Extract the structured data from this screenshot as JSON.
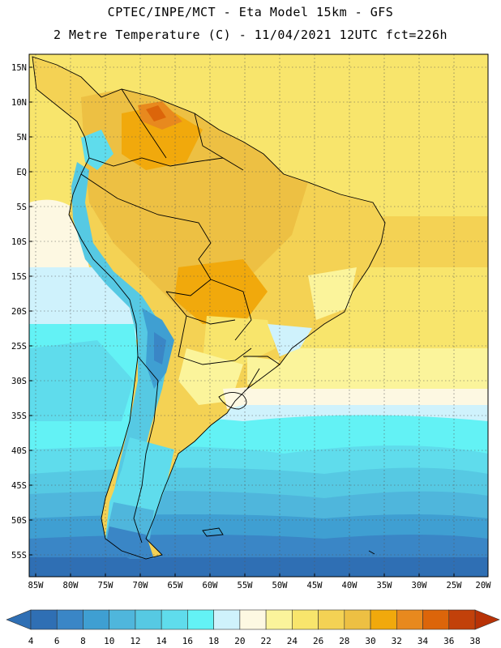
{
  "header": {
    "line1": "CPTEC/INPE/MCT -  Eta Model 15km - GFS",
    "line2": "2 Metre Temperature (C) - 11/04/2021 12UTC fct=226h"
  },
  "map": {
    "lat_labels": [
      "15N",
      "10N",
      "5N",
      "EQ",
      "5S",
      "10S",
      "15S",
      "20S",
      "25S",
      "30S",
      "35S",
      "40S",
      "45S",
      "50S",
      "55S"
    ],
    "lon_labels": [
      "85W",
      "80W",
      "75W",
      "70W",
      "65W",
      "60W",
      "55W",
      "50W",
      "45W",
      "40W",
      "35W",
      "30W",
      "25W",
      "20W"
    ],
    "gridlines": "dotted"
  },
  "colorbar": {
    "labels": [
      "4",
      "6",
      "8",
      "10",
      "12",
      "14",
      "16",
      "18",
      "20",
      "22",
      "24",
      "26",
      "28",
      "30",
      "32",
      "34",
      "36",
      "38"
    ],
    "colors": [
      "#2f6fb4",
      "#3a86c6",
      "#3f9fd2",
      "#4fb6dc",
      "#56c9e3",
      "#5fdcec",
      "#63f2f5",
      "#cff2fc",
      "#fdf8e2",
      "#fbf49b",
      "#f8e56c",
      "#f4d254",
      "#edc043",
      "#f1a90c",
      "#e8891e",
      "#dc650a",
      "#c2410a"
    ],
    "low_arrow_color": "#2f6fb4",
    "high_arrow_color": "#b83206"
  }
}
